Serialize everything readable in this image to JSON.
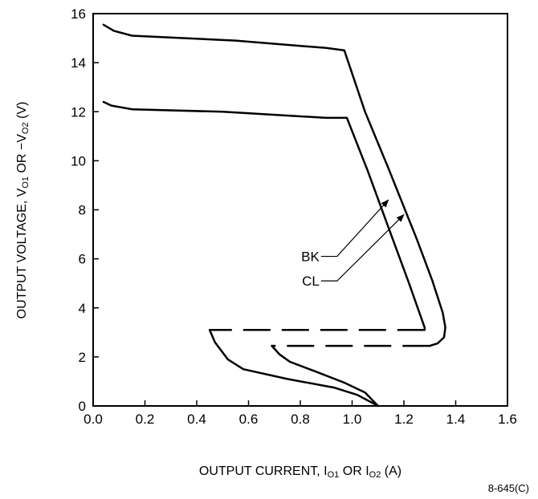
{
  "chart_data": {
    "type": "line",
    "xlabel": {
      "prefix": "OUTPUT CURRENT, I",
      "sub1": "O1",
      "mid": " OR I",
      "sub2": "O2",
      "suffix": " (A)"
    },
    "ylabel": {
      "prefix": "OUTPUT VOLTAGE, V",
      "sub1": "O1",
      "mid": " OR −V",
      "sub2": "O2",
      "suffix": " (V)"
    },
    "xlim": [
      0.0,
      1.6
    ],
    "ylim": [
      0,
      16
    ],
    "x_ticks": [
      {
        "value": 0.0,
        "label": "0.0"
      },
      {
        "value": 0.2,
        "label": "0.2"
      },
      {
        "value": 0.4,
        "label": "0.4"
      },
      {
        "value": 0.6,
        "label": "0.6"
      },
      {
        "value": 0.8,
        "label": "0.8"
      },
      {
        "value": 1.0,
        "label": "1.0"
      },
      {
        "value": 1.2,
        "label": "1.2"
      },
      {
        "value": 1.4,
        "label": "1.4"
      },
      {
        "value": 1.6,
        "label": "1.6"
      }
    ],
    "y_ticks": [
      {
        "value": 0,
        "label": "0"
      },
      {
        "value": 2,
        "label": "2"
      },
      {
        "value": 4,
        "label": "4"
      },
      {
        "value": 6,
        "label": "6"
      },
      {
        "value": 8,
        "label": "8"
      },
      {
        "value": 10,
        "label": "10"
      },
      {
        "value": 12,
        "label": "12"
      },
      {
        "value": 14,
        "label": "14"
      },
      {
        "value": 16,
        "label": "16"
      }
    ],
    "grid": false,
    "series": [
      {
        "name": "BK",
        "solid": [
          [
            0.04,
            12.4
          ],
          [
            0.07,
            12.25
          ],
          [
            0.15,
            12.1
          ],
          [
            0.5,
            12.0
          ],
          [
            0.9,
            11.75
          ],
          [
            0.98,
            11.75
          ],
          [
            1.06,
            9.6
          ],
          [
            1.15,
            7.0
          ],
          [
            1.22,
            5.0
          ],
          [
            1.28,
            3.2
          ],
          [
            1.28,
            3.1
          ]
        ],
        "dashed": [
          [
            1.28,
            3.1
          ],
          [
            0.45,
            3.1
          ]
        ],
        "foldback": [
          [
            0.45,
            3.1
          ],
          [
            0.47,
            2.6
          ],
          [
            0.52,
            1.9
          ],
          [
            0.58,
            1.5
          ],
          [
            0.75,
            1.1
          ],
          [
            0.93,
            0.75
          ],
          [
            1.02,
            0.45
          ],
          [
            1.1,
            0.0
          ]
        ]
      },
      {
        "name": "CL",
        "solid": [
          [
            0.04,
            15.55
          ],
          [
            0.08,
            15.3
          ],
          [
            0.15,
            15.1
          ],
          [
            0.55,
            14.9
          ],
          [
            0.9,
            14.6
          ],
          [
            0.97,
            14.5
          ],
          [
            1.05,
            12.0
          ],
          [
            1.14,
            9.7
          ],
          [
            1.25,
            6.8
          ],
          [
            1.31,
            5.1
          ],
          [
            1.35,
            3.8
          ],
          [
            1.36,
            3.2
          ],
          [
            1.355,
            2.8
          ],
          [
            1.33,
            2.55
          ],
          [
            1.3,
            2.45
          ]
        ],
        "dashed": [
          [
            1.3,
            2.45
          ],
          [
            0.69,
            2.45
          ]
        ],
        "foldback": [
          [
            0.69,
            2.45
          ],
          [
            0.72,
            2.1
          ],
          [
            0.76,
            1.8
          ],
          [
            0.86,
            1.4
          ],
          [
            0.97,
            0.95
          ],
          [
            1.05,
            0.55
          ],
          [
            1.1,
            0.0
          ]
        ]
      }
    ],
    "annotations": [
      {
        "text": "BK",
        "label_at": [
          0.88,
          6.1
        ],
        "arrow_to": [
          1.14,
          8.4
        ]
      },
      {
        "text": "CL",
        "label_at": [
          0.88,
          5.1
        ],
        "arrow_to": [
          1.2,
          7.8
        ]
      }
    ],
    "figure_id": "8-645(C)"
  }
}
